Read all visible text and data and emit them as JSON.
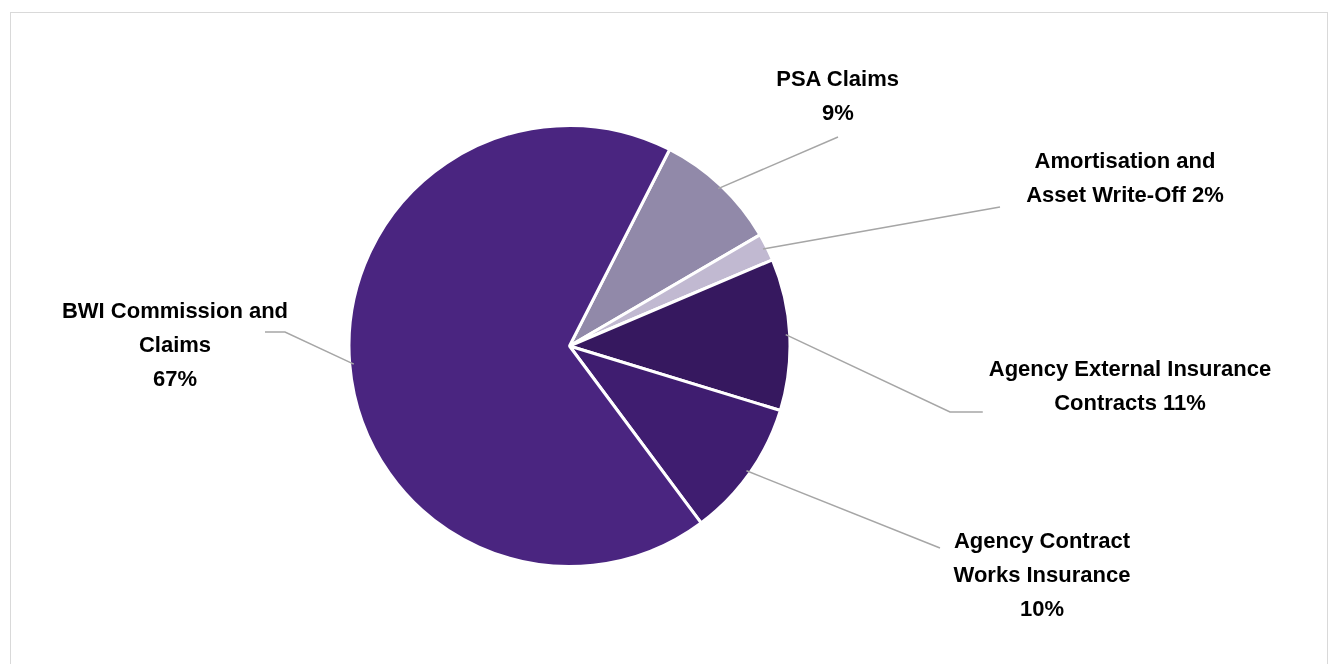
{
  "chart_data": {
    "type": "pie",
    "categories": [
      "PSA Claims",
      "Amortisation and Asset Write-Off",
      "Agency External Insurance Contracts",
      "Agency Contract Works Insurance",
      "BWI Commission and Claims"
    ],
    "values": [
      9,
      2,
      11,
      10,
      67
    ],
    "colors": [
      "#9189a9",
      "#c1b9d1",
      "#36185f",
      "#3f1d70",
      "#4a2580"
    ],
    "value_labels": [
      "9%",
      "2%",
      "11%",
      "10%",
      "67%"
    ],
    "legend": false
  }
}
